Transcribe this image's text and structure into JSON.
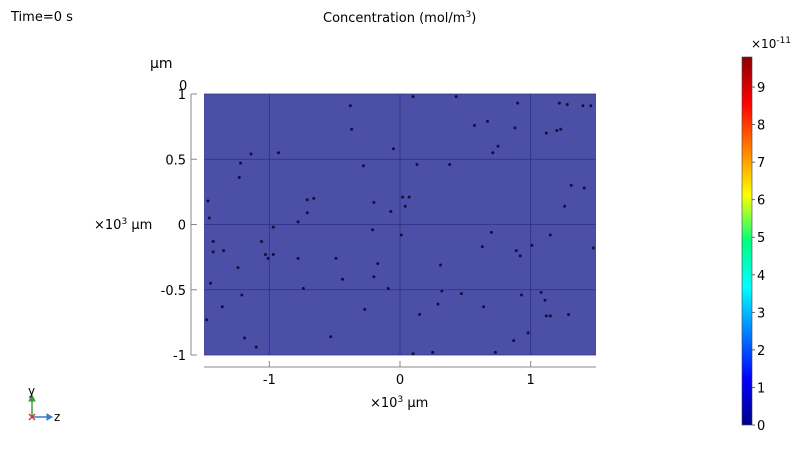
{
  "header": {
    "time_label": "Time=0 s",
    "title_text": "Concentration (mol/m",
    "title_sup": "3",
    "title_close": ")"
  },
  "axes": {
    "y_unit_top": "μm",
    "y_top_extra_tick": "0",
    "y_scale_prefix": "×10",
    "y_scale_sup": "3",
    "y_scale_unit": "μm",
    "x_scale_prefix": "×10",
    "x_scale_sup": "3",
    "x_scale_unit": "μm"
  },
  "colorbar": {
    "multiplier_prefix": "×10",
    "multiplier_sup": "-11",
    "ticks": [
      "9",
      "8",
      "7",
      "6",
      "5",
      "4",
      "3",
      "2",
      "1",
      "0"
    ],
    "colors": [
      "#8b0000",
      "#ff0000",
      "#ff7f00",
      "#ffff00",
      "#00ff7f",
      "#00ffff",
      "#007fff",
      "#0000ff",
      "#00008b"
    ]
  },
  "triad": {
    "y_label": "y",
    "z_label": "z",
    "y_color": "#3a9a3a",
    "z_color": "#3a7ad0",
    "x_color": "#d03030"
  },
  "chart_data": {
    "type": "heatmap",
    "title": "Concentration (mol/m3)",
    "subtitle": "Time=0 s",
    "xlim": [
      -1.5,
      1.5
    ],
    "ylim": [
      -1,
      1
    ],
    "xticks": [
      "-1",
      "0",
      "1"
    ],
    "yticks": [
      "-1",
      "-0.5",
      "0",
      "0.5",
      "1"
    ],
    "grid": true,
    "field_value": 0,
    "field_color": "#4b4fa6",
    "colorbar_range": [
      0,
      9.8
    ],
    "particles": {
      "x": [
        0.1,
        0.43,
        0.9,
        -0.38,
        -0.37,
        0.57,
        0.67,
        0.88,
        1.22,
        1.28,
        1.4,
        1.46,
        1.2,
        1.12,
        1.23,
        -0.05,
        -0.93,
        0.75,
        0.71,
        -1.14,
        0.13,
        0.38,
        -1.22,
        -0.28,
        1.31,
        1.41,
        -1.23,
        -0.71,
        -0.66,
        -0.2,
        0.02,
        0.07,
        0.04,
        -1.47,
        -0.71,
        -0.07,
        -0.78,
        1.26,
        -1.46,
        -1.43,
        -0.21,
        1.15,
        0.01,
        -0.97,
        0.7,
        0.89,
        -1.06,
        0.63,
        -1.43,
        -0.97,
        -0.49,
        -1.24,
        1.48,
        -1.35,
        -0.17,
        1.01,
        0.92,
        -1.03,
        -1.01,
        -1.45,
        -0.44,
        -0.2,
        0.31,
        -0.74,
        0.32,
        0.64,
        1.08,
        0.93,
        1.11,
        -0.09,
        0.29,
        -0.27,
        -0.78,
        -1.21,
        0.47,
        0.15,
        0.98,
        -1.36,
        1.15,
        1.12,
        1.29,
        -1.48,
        0.87,
        -0.53,
        -1.1,
        0.73,
        0.1,
        0.25,
        -1.19
      ],
      "y": [
        0.98,
        0.98,
        0.93,
        0.91,
        0.73,
        0.76,
        0.79,
        0.74,
        0.93,
        0.92,
        0.91,
        0.91,
        0.72,
        0.7,
        0.73,
        0.58,
        0.55,
        0.6,
        0.55,
        0.54,
        0.46,
        0.46,
        0.47,
        0.45,
        0.3,
        0.28,
        0.36,
        0.19,
        0.2,
        0.17,
        0.21,
        0.21,
        0.14,
        0.18,
        0.09,
        0.1,
        0.02,
        0.14,
        0.05,
        -0.13,
        -0.04,
        -0.08,
        -0.08,
        -0.02,
        -0.06,
        -0.2,
        -0.13,
        -0.17,
        -0.21,
        -0.23,
        -0.26,
        -0.33,
        -0.18,
        -0.2,
        -0.3,
        -0.16,
        -0.24,
        -0.23,
        -0.26,
        -0.45,
        -0.42,
        -0.4,
        -0.31,
        -0.49,
        -0.51,
        -0.63,
        -0.52,
        -0.54,
        -0.58,
        -0.49,
        -0.61,
        -0.65,
        -0.26,
        -0.54,
        -0.53,
        -0.69,
        -0.83,
        -0.63,
        -0.7,
        -0.7,
        -0.69,
        -0.73,
        -0.89,
        -0.86,
        -0.94,
        -0.98,
        -0.99,
        -0.98,
        -0.87
      ]
    }
  }
}
